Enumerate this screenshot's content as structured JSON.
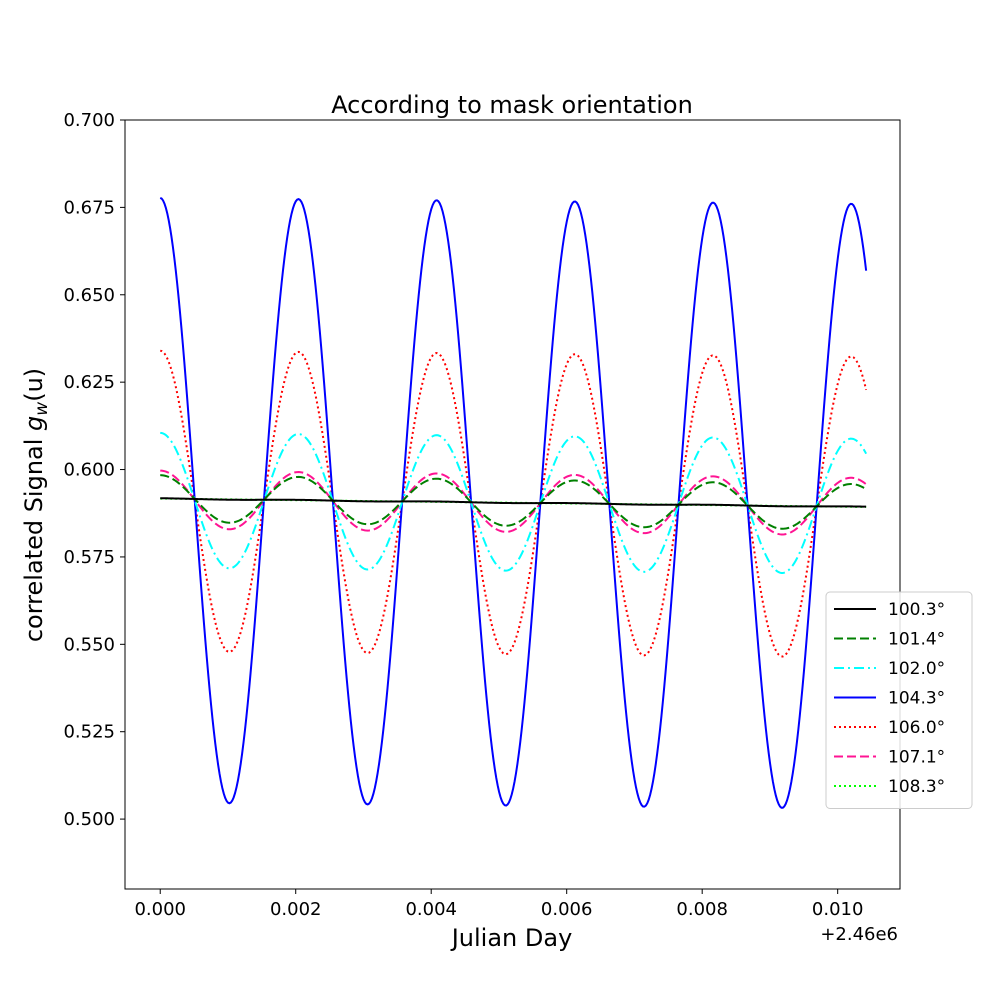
{
  "chart_data": {
    "type": "line",
    "title": "According to mask orientation",
    "xlabel": "Julian Day",
    "ylabel_prefix": "correlated Signal ",
    "ylabel_var": "g",
    "ylabel_sub": "w",
    "ylabel_suffix": "(u)",
    "x_offset_label": "+2.46e6",
    "xlim": [
      -0.00052,
      0.01092
    ],
    "ylim": [
      0.48,
      0.7
    ],
    "x_ticks": [
      0.0,
      0.002,
      0.004,
      0.006,
      0.008,
      0.01
    ],
    "x_tick_labels": [
      "0.000",
      "0.002",
      "0.004",
      "0.006",
      "0.008",
      "0.010"
    ],
    "y_ticks": [
      0.5,
      0.525,
      0.55,
      0.575,
      0.6,
      0.625,
      0.65,
      0.675,
      0.7
    ],
    "y_tick_labels": [
      "0.500",
      "0.525",
      "0.550",
      "0.575",
      "0.600",
      "0.625",
      "0.650",
      "0.675",
      "0.700"
    ],
    "grid": false,
    "legend_position": "right",
    "x_range": [
      0.0,
      0.01042
    ],
    "period": 0.00204,
    "series": [
      {
        "name": "100.3°",
        "color": "#000000",
        "dash": "solid",
        "center": [
          0.5917,
          0.5893
        ],
        "amplitude": [
          0.0001,
          0.0001
        ]
      },
      {
        "name": "101.4°",
        "color": "#008000",
        "dash": "dashed",
        "center": [
          0.5917,
          0.5893
        ],
        "amplitude": [
          0.0067,
          0.0065
        ]
      },
      {
        "name": "102.0°",
        "color": "#00ffff",
        "dash": "dashdot",
        "center": [
          0.5912,
          0.5895
        ],
        "amplitude": [
          0.0193,
          0.0193
        ]
      },
      {
        "name": "104.3°",
        "color": "#0000ff",
        "dash": "solid",
        "center": [
          0.5912,
          0.5895
        ],
        "amplitude": [
          0.0865,
          0.0865
        ]
      },
      {
        "name": "106.0°",
        "color": "#ff0000",
        "dash": "dotted",
        "center": [
          0.591,
          0.5893
        ],
        "amplitude": [
          0.043,
          0.043
        ]
      },
      {
        "name": "107.1°",
        "color": "#ff1493",
        "dash": "dashed",
        "center": [
          0.5914,
          0.5894
        ],
        "amplitude": [
          0.0083,
          0.0082
        ]
      },
      {
        "name": "108.3°",
        "color": "#00ff00",
        "dash": "dotted",
        "center": [
          0.5917,
          0.5893
        ],
        "amplitude": [
          0.0,
          0.0
        ]
      }
    ]
  }
}
